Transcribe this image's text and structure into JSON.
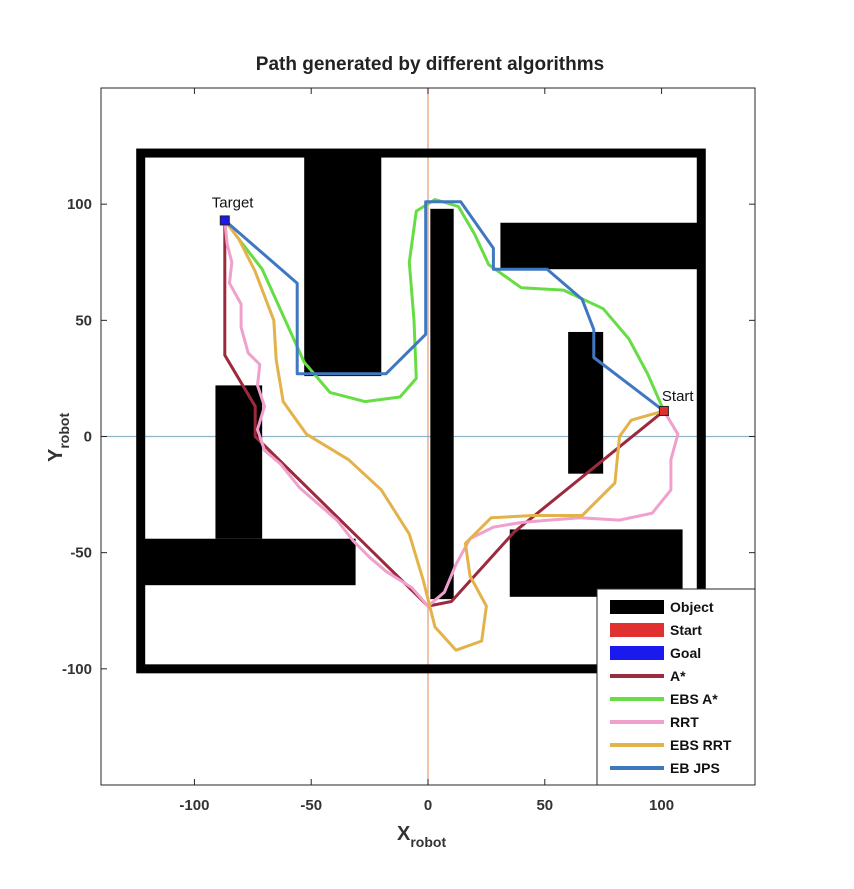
{
  "chart_data": {
    "type": "line",
    "title": "Path generated by different algorithms",
    "xlabel": "X",
    "xlabel_sub": "robot",
    "ylabel": "Y",
    "ylabel_sub": "robot",
    "xlim": [
      -140,
      140
    ],
    "ylim": [
      -150,
      150
    ],
    "xticks": [
      -100,
      -50,
      0,
      50,
      100
    ],
    "yticks": [
      -100,
      -50,
      0,
      50,
      100
    ],
    "grid": false,
    "legend_position": "bottom-right",
    "reference_lines": {
      "vertical_x": 0,
      "vertical_color": "#e59a72",
      "horizontal_y": 0,
      "horizontal_color": "#8fb4c8"
    },
    "boundary": {
      "xmin": -123,
      "xmax": 117,
      "ymin": -100,
      "ymax": 122,
      "color": "#000000"
    },
    "obstacles": [
      {
        "xmin": -53,
        "xmax": -20,
        "ymin": 26,
        "ymax": 121
      },
      {
        "xmin": 1,
        "xmax": 11,
        "ymin": -70,
        "ymax": 98
      },
      {
        "xmin": 31,
        "xmax": 117,
        "ymin": 72,
        "ymax": 92
      },
      {
        "xmin": 60,
        "xmax": 75,
        "ymin": -16,
        "ymax": 45
      },
      {
        "xmin": -91,
        "xmax": -71,
        "ymin": -44,
        "ymax": 22
      },
      {
        "xmin": -123,
        "xmax": -31,
        "ymin": -64,
        "ymax": -44
      },
      {
        "xmin": 35,
        "xmax": 109,
        "ymin": -69,
        "ymax": -40
      }
    ],
    "start": {
      "label": "Start",
      "x": 101,
      "y": 11,
      "color": "#e03030"
    },
    "goal": {
      "label": "Target",
      "x": -87,
      "y": 93,
      "color": "#1a1aee"
    },
    "series": [
      {
        "name": "A*",
        "color": "#9b2a3c",
        "width": 3,
        "points": [
          [
            101,
            11
          ],
          [
            37,
            -41
          ],
          [
            10,
            -71
          ],
          [
            0,
            -73
          ],
          [
            -74,
            0
          ],
          [
            -74,
            13
          ],
          [
            -87,
            35
          ],
          [
            -87,
            93
          ]
        ]
      },
      {
        "name": "EBS A*",
        "color": "#66dd44",
        "width": 3,
        "points": [
          [
            -87,
            93
          ],
          [
            -81,
            85
          ],
          [
            -71,
            72
          ],
          [
            -62,
            52
          ],
          [
            -53,
            32
          ],
          [
            -42,
            19
          ],
          [
            -27,
            15
          ],
          [
            -12,
            17
          ],
          [
            -5,
            25
          ],
          [
            -6,
            50
          ],
          [
            -8,
            75
          ],
          [
            -5,
            97
          ],
          [
            3,
            102
          ],
          [
            13,
            99
          ],
          [
            20,
            87
          ],
          [
            26,
            74
          ],
          [
            40,
            64
          ],
          [
            58,
            63
          ],
          [
            75,
            55
          ],
          [
            86,
            42
          ],
          [
            94,
            27
          ],
          [
            101,
            11
          ]
        ]
      },
      {
        "name": "RRT",
        "color": "#f0a0cc",
        "width": 3,
        "points": [
          [
            101,
            11
          ],
          [
            107,
            1
          ],
          [
            104,
            -10
          ],
          [
            104,
            -23
          ],
          [
            96,
            -33
          ],
          [
            82,
            -36
          ],
          [
            65,
            -35
          ],
          [
            52,
            -36
          ],
          [
            40,
            -37
          ],
          [
            28,
            -39
          ],
          [
            18,
            -44
          ],
          [
            12,
            -55
          ],
          [
            7,
            -67
          ],
          [
            0,
            -73
          ],
          [
            -7,
            -65
          ],
          [
            -18,
            -58
          ],
          [
            -25,
            -52
          ],
          [
            -32,
            -45
          ],
          [
            -39,
            -36
          ],
          [
            -47,
            -29
          ],
          [
            -55,
            -22
          ],
          [
            -63,
            -12
          ],
          [
            -70,
            -6
          ],
          [
            -73,
            3
          ],
          [
            -70,
            13
          ],
          [
            -73,
            22
          ],
          [
            -72,
            31
          ],
          [
            -77,
            36
          ],
          [
            -80,
            47
          ],
          [
            -80,
            57
          ],
          [
            -85,
            66
          ],
          [
            -84,
            75
          ],
          [
            -86,
            83
          ],
          [
            -87,
            93
          ]
        ]
      },
      {
        "name": "EBS RRT",
        "color": "#e3b24a",
        "width": 3,
        "points": [
          [
            -87,
            93
          ],
          [
            -81,
            85
          ],
          [
            -74,
            71
          ],
          [
            -66,
            50
          ],
          [
            -65,
            33
          ],
          [
            -62,
            15
          ],
          [
            -52,
            1
          ],
          [
            -34,
            -10
          ],
          [
            -20,
            -23
          ],
          [
            -8,
            -42
          ],
          [
            -2,
            -62
          ],
          [
            3,
            -82
          ],
          [
            12,
            -92
          ],
          [
            23,
            -88
          ],
          [
            25,
            -73
          ],
          [
            18,
            -60
          ],
          [
            16,
            -46
          ],
          [
            27,
            -35
          ],
          [
            45,
            -34
          ],
          [
            66,
            -34
          ],
          [
            80,
            -20
          ],
          [
            82,
            0
          ],
          [
            87,
            7
          ],
          [
            101,
            11
          ]
        ]
      },
      {
        "name": "EB JPS",
        "color": "#3f78c0",
        "width": 3,
        "points": [
          [
            -87,
            93
          ],
          [
            -56,
            66
          ],
          [
            -56,
            27
          ],
          [
            -18,
            27
          ],
          [
            -1,
            44
          ],
          [
            -1,
            101
          ],
          [
            14,
            101
          ],
          [
            28,
            81
          ],
          [
            28,
            72
          ],
          [
            51,
            72
          ],
          [
            66,
            59
          ],
          [
            71,
            46
          ],
          [
            71,
            34
          ],
          [
            101,
            11
          ]
        ]
      }
    ],
    "legend": [
      {
        "label": "Object",
        "kind": "patch",
        "color": "#000000"
      },
      {
        "label": "Start",
        "kind": "patch",
        "color": "#e03030"
      },
      {
        "label": "Goal",
        "kind": "patch",
        "color": "#1a1aee"
      },
      {
        "label": "A*",
        "kind": "line",
        "color": "#9b2a3c"
      },
      {
        "label": "EBS A*",
        "kind": "line",
        "color": "#66dd44"
      },
      {
        "label": "RRT",
        "kind": "line",
        "color": "#f0a0cc"
      },
      {
        "label": "EBS RRT",
        "kind": "line",
        "color": "#e3b24a"
      },
      {
        "label": "EB JPS",
        "kind": "line",
        "color": "#3f78c0"
      }
    ]
  }
}
